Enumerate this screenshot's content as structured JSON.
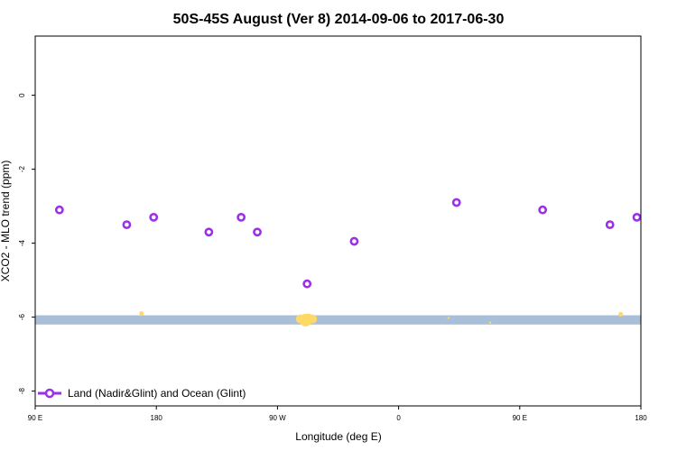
{
  "chart_data": {
    "type": "scatter",
    "title": "50S-45S August (Ver 8)   2014-09-06 to 2017-06-30",
    "xlabel": "Longitude (deg E)",
    "ylabel": "XCO2 - MLO trend (ppm)",
    "x_domain_deg_east": [
      90,
      540
    ],
    "x_ticks": [
      {
        "value": 90,
        "label": "90 E"
      },
      {
        "value": 180,
        "label": "180"
      },
      {
        "value": 270,
        "label": "90 W"
      },
      {
        "value": 360,
        "label": "0"
      },
      {
        "value": 450,
        "label": "90 E"
      },
      {
        "value": 540,
        "label": "180"
      }
    ],
    "ylim": [
      -8.4,
      1.6
    ],
    "y_ticks": [
      {
        "value": 0,
        "label": "0"
      },
      {
        "value": -2,
        "label": "-2"
      },
      {
        "value": -4,
        "label": "-4"
      },
      {
        "value": -6,
        "label": "-6"
      },
      {
        "value": -8,
        "label": "-8"
      }
    ],
    "grid": false,
    "legend_position": "bottom-left",
    "series": [
      {
        "name": "Land (Nadir&Glint) and Ocean (Glint)",
        "color": "#9B30E8",
        "marker": "open-circle",
        "points": [
          {
            "x": 108,
            "y": -3.1
          },
          {
            "x": 158,
            "y": -3.5
          },
          {
            "x": 178,
            "y": -3.3
          },
          {
            "x": 219,
            "y": -3.7
          },
          {
            "x": 243,
            "y": -3.3
          },
          {
            "x": 255,
            "y": -3.7
          },
          {
            "x": 292,
            "y": -5.1
          },
          {
            "x": 327,
            "y": -3.95
          },
          {
            "x": 403,
            "y": -2.9
          },
          {
            "x": 467,
            "y": -3.1
          },
          {
            "x": 517,
            "y": -3.5
          },
          {
            "x": 537,
            "y": -3.3
          }
        ]
      }
    ],
    "reference_band": {
      "y_min": -6.2,
      "y_max": -5.95,
      "x_from": 90,
      "x_to": 540,
      "color": "#A9BFD8"
    },
    "highlight_markers": {
      "color": "#FFD966",
      "points": [
        {
          "x": 169,
          "y": -5.9,
          "size": 2.5
        },
        {
          "x": 287,
          "y": -6.05,
          "size": 5
        },
        {
          "x": 291,
          "y": -6.08,
          "size": 7
        },
        {
          "x": 296,
          "y": -6.05,
          "size": 5
        },
        {
          "x": 289,
          "y": -6.12,
          "size": 4
        },
        {
          "x": 293,
          "y": -6.0,
          "size": 4
        },
        {
          "x": 397,
          "y": -6.02,
          "size": 1.2
        },
        {
          "x": 428,
          "y": -6.15,
          "size": 1.2
        },
        {
          "x": 525,
          "y": -5.92,
          "size": 2.5
        }
      ]
    }
  }
}
